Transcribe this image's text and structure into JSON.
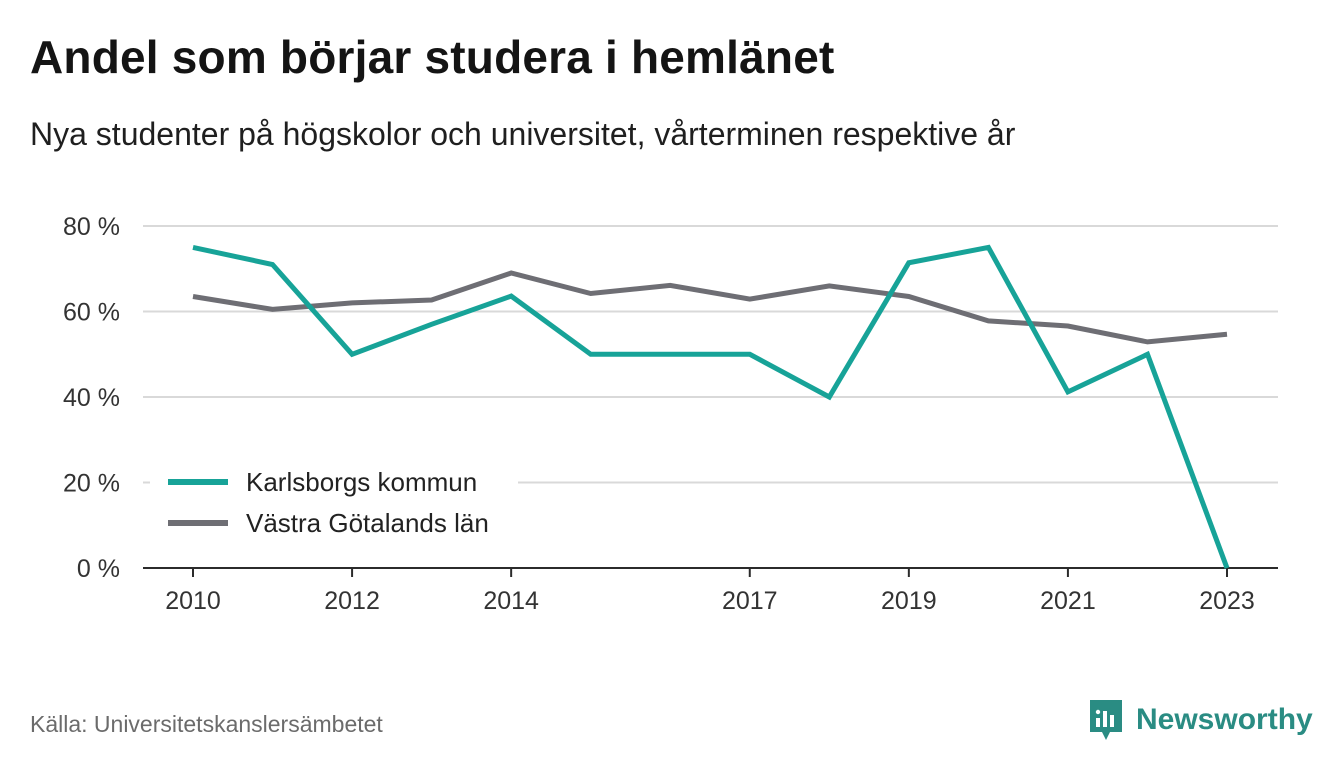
{
  "title": "Andel som börjar studera i hemlänet",
  "subtitle": "Nya studenter på högskolor och universitet, vårterminen respektive år",
  "source": "Källa: Universitetskanslersämbetet",
  "brand": {
    "name": "Newsworthy",
    "icon": "newsworthy-logo-icon",
    "color": "#2a8c83"
  },
  "chart_data": {
    "type": "line",
    "x": [
      2010,
      2011,
      2012,
      2013,
      2014,
      2015,
      2016,
      2017,
      2018,
      2019,
      2020,
      2021,
      2022,
      2023
    ],
    "x_tick_labels": [
      "2010",
      "2012",
      "2014",
      "2017",
      "2019",
      "2021",
      "2023"
    ],
    "x_ticks": [
      2010,
      2012,
      2014,
      2017,
      2019,
      2021,
      2023
    ],
    "y_tick_labels": [
      "0 %",
      "20 %",
      "40 %",
      "60 %",
      "80 %"
    ],
    "y_ticks": [
      0,
      20,
      40,
      60,
      80
    ],
    "ylim": [
      0,
      80
    ],
    "grid": true,
    "legend_position": "bottom-left",
    "series": [
      {
        "name": "Karlsborgs kommun",
        "color": "#17a398",
        "values": [
          75,
          71,
          50,
          57,
          63.6,
          50,
          50,
          50,
          40,
          71.4,
          75,
          41.2,
          50,
          0
        ]
      },
      {
        "name": "Västra Götalands län",
        "color": "#6e6e74",
        "values": [
          63.5,
          60.5,
          62,
          62.7,
          69,
          64.2,
          66.1,
          62.9,
          66,
          63.5,
          57.8,
          56.6,
          52.9,
          54.7
        ]
      }
    ]
  }
}
